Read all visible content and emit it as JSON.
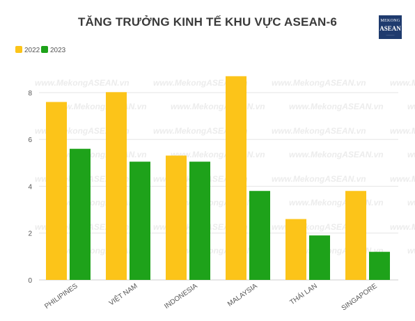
{
  "title": "TĂNG TRƯỞNG KINH TẾ KHU VỰC ASEAN-6",
  "logo": {
    "line1": "MEKONG",
    "line2": "ASEAN"
  },
  "watermark": "www.MekongASEAN.vn",
  "colors": {
    "2022": "#fcc419",
    "2023": "#1ea21a"
  },
  "chart_data": {
    "type": "bar",
    "categories": [
      "PHILIPINES",
      "VIỆT NAM",
      "INDONESIA",
      "MALAYSIA",
      "THÁI LAN",
      "SINGAPORE"
    ],
    "series": [
      {
        "name": "2022",
        "values": [
          7.6,
          8.02,
          5.31,
          8.7,
          2.6,
          3.8
        ]
      },
      {
        "name": "2023",
        "values": [
          5.6,
          5.05,
          5.05,
          3.8,
          1.9,
          1.2
        ]
      }
    ],
    "yticks": [
      0,
      2,
      4,
      6,
      8
    ],
    "ylim": [
      0,
      9.1
    ],
    "grid": true,
    "legend": "top-left",
    "title": "TĂNG TRƯỞNG KINH TẾ KHU VỰC ASEAN-6",
    "xlabel": "",
    "ylabel": ""
  }
}
